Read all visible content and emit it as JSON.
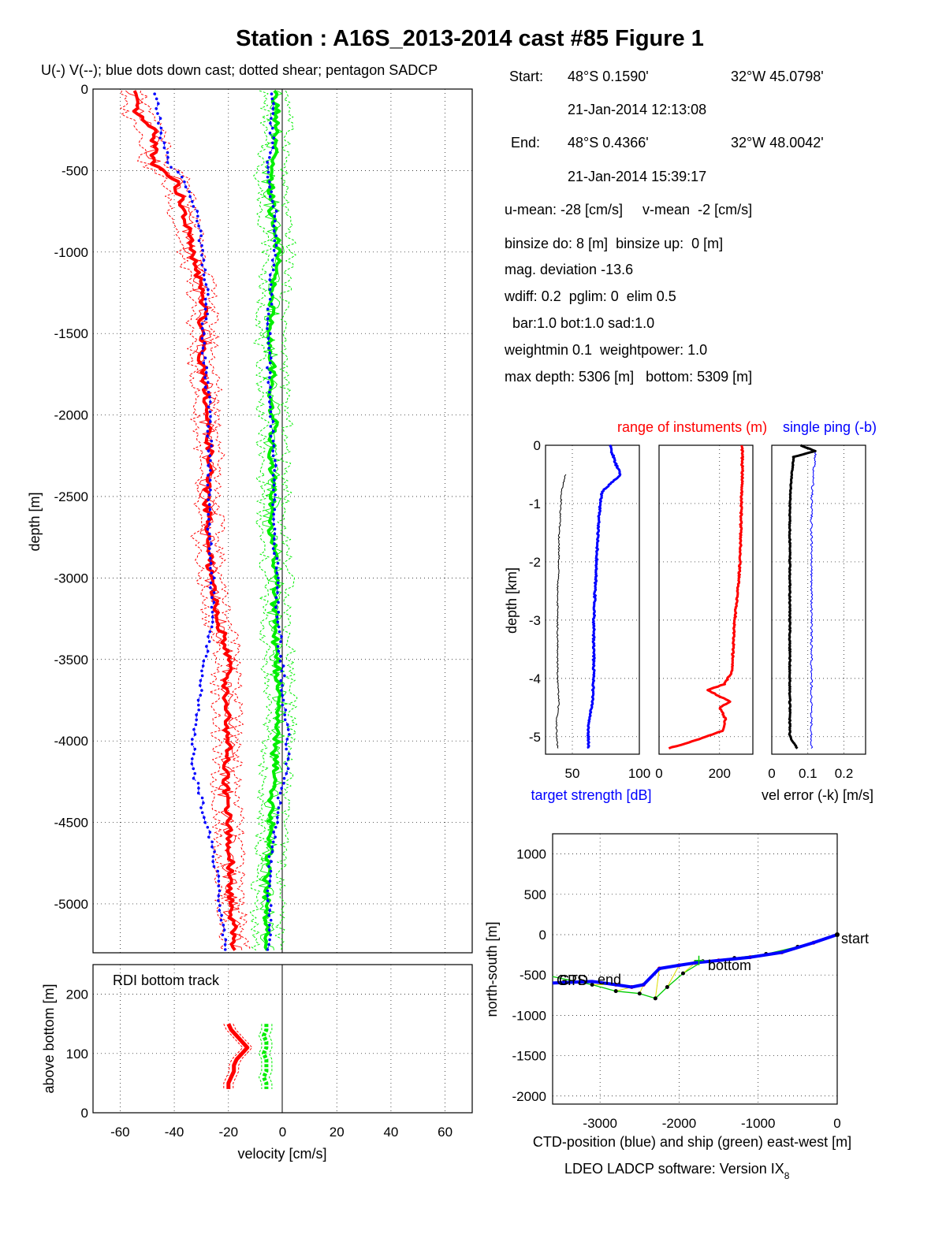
{
  "title": "Station : A16S_2013-2014 cast #85  Figure 1",
  "main_plot": {
    "subtitle": "U(-) V(--); blue dots down cast; dotted shear; pentagon SADCP",
    "ylabel": "depth [m]",
    "y_ticks": [
      "0",
      "-500",
      "-1000",
      "-1500",
      "-2000",
      "-2500",
      "-3000",
      "-3500",
      "-4000",
      "-4500",
      "-5000"
    ],
    "x_ticks": [
      "-60",
      "-40",
      "-20",
      "0",
      "20",
      "40",
      "60"
    ],
    "xlabel": "velocity [cm/s]",
    "bottom_track_label": "RDI bottom track",
    "bottom_ylabel": "above bottom [m]",
    "bottom_y_ticks": [
      "0",
      "100",
      "200"
    ]
  },
  "info": {
    "start_label": "Start:",
    "start_lat": "48°S  0.1590'",
    "start_lon": "32°W 45.0798'",
    "start_time": "21-Jan-2014 12:13:08",
    "end_label": "End:",
    "end_lat": "48°S  0.4366'",
    "end_lon": "32°W 48.0042'",
    "end_time": "21-Jan-2014 15:39:17",
    "means": "u-mean: -28 [cm/s]     v-mean  -2 [cm/s]",
    "binsize": "binsize do: 8 [m]  binsize up:  0 [m]",
    "mag": "mag. deviation -13.6",
    "wdiff": "wdiff: 0.2  pglim: 0  elim 0.5",
    "bar": "bar:1.0 bot:1.0 sad:1.0",
    "weight": "weightmin 0.1  weightpower: 1.0",
    "depth": "max depth: 5306 [m]   bottom: 5309 [m]"
  },
  "instrument_panels": {
    "title_red": "range of instuments (m)",
    "title_blue": "single ping (-b)",
    "ylabel": "depth [km]",
    "y_ticks": [
      "0",
      "-1",
      "-2",
      "-3",
      "-4",
      "-5"
    ],
    "p1_x_ticks": [
      "50",
      "100"
    ],
    "p2_x_ticks": [
      "0",
      "200"
    ],
    "p3_x_ticks": [
      "0",
      "0.1",
      "0.2"
    ],
    "xlabel_left": "target strength [dB]",
    "xlabel_right": "vel error (-k) [m/s]"
  },
  "position_plot": {
    "ylabel": "north-south [m]",
    "xlabel": "CTD-position (blue) and ship (green) east-west [m]",
    "y_ticks": [
      "1000",
      "500",
      "0",
      "-500",
      "-1000",
      "-1500",
      "-2000"
    ],
    "x_ticks": [
      "-3000",
      "-2000",
      "-1000",
      "0"
    ],
    "label_start": "start",
    "label_end": "end",
    "label_bottom": "bottom",
    "label_gps": "GPS",
    "label_ctd": "CTD"
  },
  "footer": {
    "software": "LDEO LADCP software: Version IX",
    "version_sub": "8"
  },
  "colors": {
    "u": "#ff0000",
    "v": "#00ee00",
    "down": "#0000ff",
    "ctd": "#0000ff",
    "ship": "#00cc00",
    "yellow": "#dddd00"
  },
  "chart_data": [
    {
      "type": "line",
      "name": "velocity profile",
      "xlim": [
        -70,
        70
      ],
      "ylim": [
        -5300,
        0
      ],
      "y": [
        -50,
        -150,
        -250,
        -350,
        -450,
        -550,
        -650,
        -750,
        -850,
        -950,
        -1050,
        -1150,
        -1250,
        -1350,
        -1450,
        -1550,
        -1650,
        -1750,
        -1850,
        -1950,
        -2050,
        -2150,
        -2250,
        -2350,
        -2450,
        -2550,
        -2650,
        -2750,
        -2850,
        -2950,
        -3050,
        -3150,
        -3250,
        -3350,
        -3450,
        -3550,
        -3650,
        -3750,
        -3850,
        -3950,
        -4050,
        -4150,
        -4250,
        -4350,
        -4450,
        -4550,
        -4650,
        -4750,
        -4850,
        -4950,
        -5050,
        -5150,
        -5250
      ],
      "series": [
        {
          "values": [
            -55,
            -54,
            -48,
            -47,
            -48,
            -40,
            -38,
            -37,
            -35,
            -34,
            -33,
            -31,
            -30,
            -29,
            -30,
            -29,
            -30,
            -29,
            -28,
            -28,
            -28,
            -27,
            -27,
            -27,
            -28,
            -28,
            -27,
            -28,
            -27,
            -27,
            -26,
            -25,
            -24,
            -22,
            -20,
            -20,
            -21,
            -21,
            -20,
            -21,
            -20,
            -21,
            -21,
            -21,
            -20,
            -20,
            -20,
            -19,
            -20,
            -19,
            -19,
            -18,
            -18
          ]
        },
        {
          "values": [
            -3,
            -2,
            -3,
            -3,
            -4,
            -5,
            -4,
            -4,
            -3,
            -2,
            -2,
            -3,
            -4,
            -4,
            -4,
            -5,
            -4,
            -4,
            -4,
            -4,
            -3,
            -4,
            -4,
            -4,
            -3,
            -4,
            -5,
            -4,
            -3,
            -3,
            -2,
            -3,
            -3,
            -3,
            -2,
            -2,
            -2,
            -1,
            -1,
            -2,
            -3,
            -3,
            -3,
            -4,
            -4,
            -4,
            -5,
            -5,
            -6,
            -6,
            -6,
            -6,
            -6
          ]
        },
        {
          "values": [
            -47,
            -46,
            -45,
            -44,
            -42,
            -37,
            -34,
            -32,
            -31,
            -30,
            -29,
            -29,
            -28,
            -28,
            -29,
            -29,
            -29,
            -28,
            -28,
            -27,
            -27,
            -27,
            -27,
            -27,
            -27,
            -27,
            -27,
            -27,
            -27,
            -26,
            -26,
            -26,
            -26,
            -27,
            -28,
            -29,
            -30,
            -31,
            -32,
            -33,
            -33,
            -33,
            -32,
            -30,
            -29,
            -27,
            -26,
            -25,
            -24,
            -24,
            -23,
            -22,
            -21
          ]
        },
        {
          "values": [
            -4,
            -4,
            -4,
            -4,
            -5,
            -5,
            -4,
            -3,
            -3,
            -3,
            -3,
            -4,
            -4,
            -5,
            -5,
            -5,
            -5,
            -5,
            -5,
            -5,
            -4,
            -4,
            -3,
            -3,
            -3,
            -3,
            -3,
            -3,
            -3,
            -2,
            -2,
            -2,
            -2,
            -1,
            -1,
            0,
            0,
            0,
            1,
            2,
            2,
            2,
            0,
            -1,
            -2,
            -3,
            -4,
            -5,
            -5,
            -5,
            -5,
            -5,
            -5
          ]
        }
      ]
    },
    {
      "type": "line",
      "name": "bottom track",
      "xlim": [
        -70,
        70
      ],
      "ylim": [
        0,
        250
      ],
      "y": [
        150,
        140,
        130,
        120,
        110,
        100,
        90,
        80,
        70,
        60,
        50,
        40
      ],
      "series": [
        {
          "values": [
            -20,
            -19,
            -17,
            -15,
            -13,
            -15,
            -17,
            -18,
            -18,
            -19,
            -20,
            -20
          ]
        },
        {
          "values": [
            -6,
            -6,
            -7,
            -6,
            -6,
            -7,
            -6,
            -6,
            -6,
            -7,
            -6,
            -6
          ]
        }
      ]
    },
    {
      "type": "line",
      "name": "target strength",
      "xlim": [
        30,
        100
      ],
      "ylim": [
        -5.3,
        0
      ],
      "y": [
        0,
        -0.3,
        -0.5,
        -0.8,
        -1.2,
        -1.6,
        -2,
        -2.5,
        -3,
        -3.5,
        -4,
        -4.4,
        -4.8,
        -5.2
      ],
      "series": [
        {
          "values": [
            78,
            82,
            86,
            72,
            70,
            69,
            68,
            67,
            66,
            66,
            66,
            65,
            62,
            62
          ]
        },
        {
          "values": [
            null,
            null,
            45,
            42,
            41,
            40,
            40,
            39,
            39,
            39,
            39,
            40,
            38,
            39
          ]
        }
      ]
    },
    {
      "type": "line",
      "name": "range of instruments",
      "xlim": [
        0,
        310
      ],
      "ylim": [
        -5.3,
        0
      ],
      "y": [
        0,
        -0.5,
        -1,
        -1.5,
        -2,
        -2.5,
        -3,
        -3.5,
        -3.9,
        -4.1,
        -4.2,
        -4.4,
        -4.5,
        -4.7,
        -4.9,
        -5.1,
        -5.2
      ],
      "series": [
        {
          "values": [
            275,
            275,
            272,
            270,
            268,
            260,
            250,
            245,
            240,
            215,
            160,
            235,
            200,
            220,
            210,
            100,
            30
          ]
        }
      ]
    },
    {
      "type": "line",
      "name": "velocity error",
      "xlim": [
        0,
        0.26
      ],
      "ylim": [
        -5.3,
        0
      ],
      "y": [
        0,
        -0.1,
        -0.2,
        -0.5,
        -1,
        -1.5,
        -2,
        -2.5,
        -3,
        -3.5,
        -4,
        -4.5,
        -5,
        -5.2
      ],
      "series": [
        {
          "values": [
            0.08,
            0.12,
            0.06,
            0.055,
            0.05,
            0.05,
            0.05,
            0.05,
            0.05,
            0.05,
            0.05,
            0.05,
            0.05,
            0.07
          ]
        },
        {
          "values": [
            null,
            0.12,
            0.12,
            0.115,
            0.11,
            0.11,
            0.11,
            0.11,
            0.11,
            0.11,
            0.11,
            0.11,
            0.11,
            0.11
          ]
        }
      ]
    },
    {
      "type": "line",
      "name": "position",
      "xlim": [
        -3600,
        0
      ],
      "ylim": [
        -2100,
        1250
      ],
      "series": [
        {
          "x": [
            0,
            -300,
            -700,
            -1100,
            -1500,
            -1800,
            -2000,
            -2250,
            -2450,
            -2600,
            -2800,
            -3100,
            -3600
          ],
          "y": [
            0,
            -100,
            -220,
            -280,
            -320,
            -350,
            -380,
            -420,
            -620,
            -650,
            -620,
            -580,
            -600
          ]
        },
        {
          "x": [
            0,
            -500,
            -900,
            -1300,
            -1700,
            -1950,
            -2150,
            -2300,
            -2500,
            -2800,
            -3100,
            -3600
          ],
          "y": [
            0,
            -150,
            -240,
            -290,
            -330,
            -480,
            -650,
            -790,
            -730,
            -700,
            -620,
            -520
          ]
        }
      ]
    }
  ]
}
